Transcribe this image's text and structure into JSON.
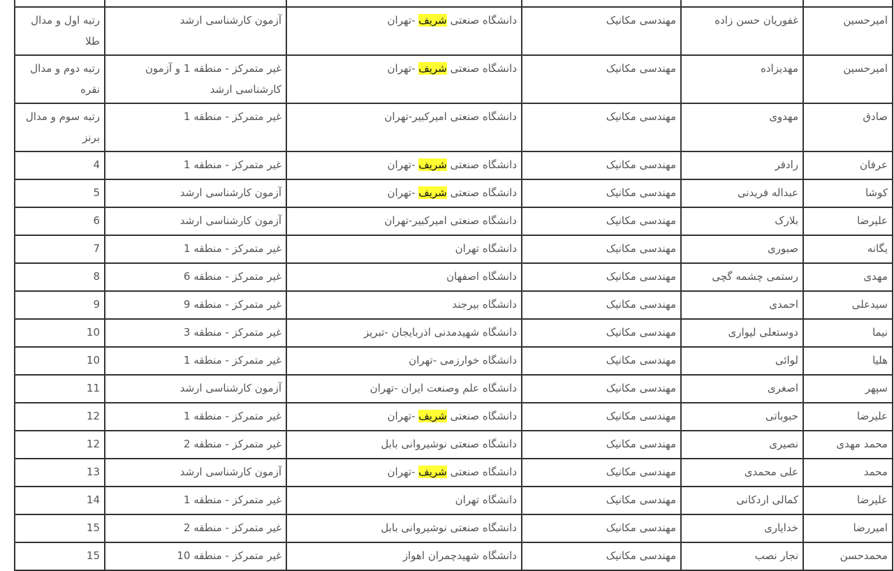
{
  "highlight_color": "#ffff33",
  "rows": [
    {
      "first": "امیرحسین",
      "last": "غفوریان حسن زاده",
      "major": "مهندسی مکانیک",
      "uni": {
        "pre": "دانشگاه صنعتی ",
        "hl": "شریف",
        "post": " -تهران"
      },
      "quota": "آزمون کارشناسی ارشد",
      "rank": "رتبه اول و مدال طلا"
    },
    {
      "first": "امیرحسین",
      "last": "مهدیزاده",
      "major": "مهندسی مکانیک",
      "uni": {
        "pre": "دانشگاه صنعتی ",
        "hl": "شریف",
        "post": " -تهران"
      },
      "quota": "غیر متمرکز - منطقه 1 و آزمون کارشناسی ارشد",
      "rank": "رتبه دوم و مدال نقره"
    },
    {
      "first": "صادق",
      "last": "مهدوی",
      "major": "مهندسی مکانیک",
      "uni": {
        "pre": "دانشگاه صنعتی امیرکبیر-تهران",
        "hl": "",
        "post": ""
      },
      "quota": "غیر متمرکز - منطقه 1",
      "rank": "رتبه سوم و مدال برنز"
    },
    {
      "first": "عرفان",
      "last": "رادفر",
      "major": "مهندسی مکانیک",
      "uni": {
        "pre": "دانشگاه صنعتی ",
        "hl": "شریف",
        "post": " -تهران"
      },
      "quota": "غیر متمرکز - منطقه 1",
      "rank": "4"
    },
    {
      "first": "کوشا",
      "last": "عبداله فریدنی",
      "major": "مهندسی مکانیک",
      "uni": {
        "pre": "دانشگاه صنعتی ",
        "hl": "شریف",
        "post": " -تهران"
      },
      "quota": "آزمون کارشناسی ارشد",
      "rank": "5"
    },
    {
      "first": "علیرضا",
      "last": "بلارک",
      "major": "مهندسی مکانیک",
      "uni": {
        "pre": "دانشگاه صنعتی امیرکبیر-تهران",
        "hl": "",
        "post": ""
      },
      "quota": "آزمون کارشناسی ارشد",
      "rank": "6"
    },
    {
      "first": "یگانه",
      "last": "صبوری",
      "major": "مهندسی مکانیک",
      "uni": {
        "pre": "دانشگاه تهران",
        "hl": "",
        "post": ""
      },
      "quota": "غیر متمرکز - منطقه 1",
      "rank": "7"
    },
    {
      "first": "مهدی",
      "last": "رستمی چشمه گچی",
      "major": "مهندسی مکانیک",
      "uni": {
        "pre": "دانشگاه اصفهان",
        "hl": "",
        "post": ""
      },
      "quota": "غیر متمرکز - منطقه 6",
      "rank": "8"
    },
    {
      "first": "سیدعلی",
      "last": "احمدی",
      "major": "مهندسی مکانیک",
      "uni": {
        "pre": "دانشگاه بیرجند",
        "hl": "",
        "post": ""
      },
      "quota": "غیر متمرکز - منطقه 9",
      "rank": "9"
    },
    {
      "first": "نیما",
      "last": "دوستعلی لیواری",
      "major": "مهندسی مکانیک",
      "uni": {
        "pre": "دانشگاه شهیدمدنی اذربایجان -تبریز",
        "hl": "",
        "post": ""
      },
      "quota": "غیر متمرکز - منطقه 3",
      "rank": "10"
    },
    {
      "first": "هلیا",
      "last": "لوائی",
      "major": "مهندسی مکانیک",
      "uni": {
        "pre": "دانشگاه خوارزمی -تهران",
        "hl": "",
        "post": ""
      },
      "quota": "غیر متمرکز - منطقه 1",
      "rank": "10"
    },
    {
      "first": "سپهر",
      "last": "اصغری",
      "major": "مهندسی مکانیک",
      "uni": {
        "pre": "دانشگاه علم وصنعت ایران -تهران",
        "hl": "",
        "post": ""
      },
      "quota": "آزمون کارشناسی ارشد",
      "rank": "11"
    },
    {
      "first": "علیرضا",
      "last": "حبوباتی",
      "major": "مهندسی مکانیک",
      "uni": {
        "pre": "دانشگاه صنعتی ",
        "hl": "شریف",
        "post": " -تهران"
      },
      "quota": "غیر متمرکز - منطقه 1",
      "rank": "12"
    },
    {
      "first": "محمد مهدی",
      "last": "نصیری",
      "major": "مهندسی مکانیک",
      "uni": {
        "pre": "دانشگاه صنعتی نوشیروانی بابل",
        "hl": "",
        "post": ""
      },
      "quota": "غیر متمرکز - منطقه 2",
      "rank": "12"
    },
    {
      "first": "محمد",
      "last": "علی محمدی",
      "major": "مهندسی مکانیک",
      "uni": {
        "pre": "دانشگاه صنعتی ",
        "hl": "شریف",
        "post": " -تهران"
      },
      "quota": "آزمون کارشناسی ارشد",
      "rank": "13"
    },
    {
      "first": "علیرضا",
      "last": "کمالی اردکانی",
      "major": "مهندسی مکانیک",
      "uni": {
        "pre": "دانشگاه تهران",
        "hl": "",
        "post": ""
      },
      "quota": "غیر متمرکز - منطقه 1",
      "rank": "14"
    },
    {
      "first": "امیررضا",
      "last": "خدایاری",
      "major": "مهندسی مکانیک",
      "uni": {
        "pre": "دانشگاه صنعتی نوشیروانی بابل",
        "hl": "",
        "post": ""
      },
      "quota": "غیر متمرکز - منطقه 2",
      "rank": "15"
    },
    {
      "first": "محمدحسن",
      "last": "نجار نصب",
      "major": "مهندسی مکانیک",
      "uni": {
        "pre": "دانشگاه شهیدچمران اهواز",
        "hl": "",
        "post": ""
      },
      "quota": "غیر متمرکز - منطقه 10",
      "rank": "15"
    }
  ]
}
